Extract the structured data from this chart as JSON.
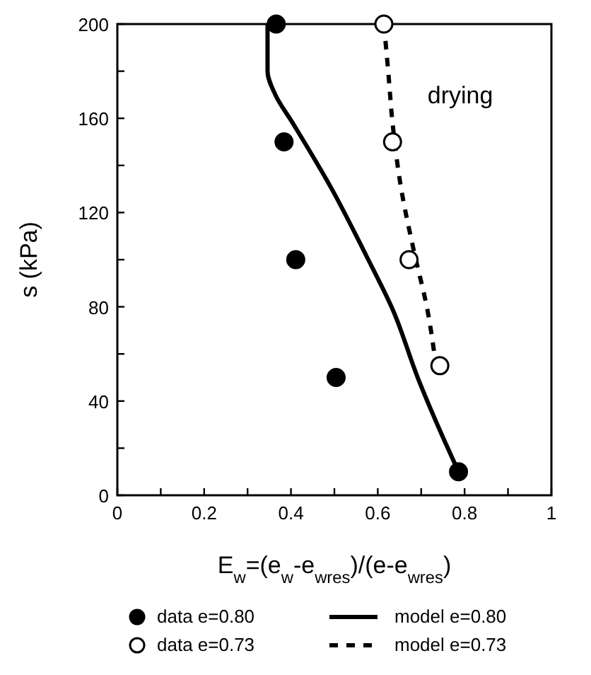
{
  "chart_data": {
    "type": "scatter",
    "xlabel": "E$_{w}$=(e$_{w}$-e$_{wres}$)/(e-e$_{wres}$)",
    "ylabel": "s (kPa)",
    "xlim": [
      0,
      1
    ],
    "ylim": [
      0,
      200
    ],
    "xticks": [
      0,
      {
        "value": 0.1,
        "label": null
      },
      0.2,
      {
        "value": 0.3,
        "label": null
      },
      0.4,
      {
        "value": 0.5,
        "label": null
      },
      0.6,
      {
        "value": 0.7,
        "label": null
      },
      0.8,
      {
        "value": 0.9,
        "label": null
      },
      1
    ],
    "yticks": [
      0,
      {
        "value": 20,
        "label": null
      },
      40,
      {
        "value": 60,
        "label": null
      },
      80,
      {
        "value": 100,
        "label": null
      },
      120,
      {
        "value": 140,
        "label": null
      },
      160,
      {
        "value": 180,
        "label": null
      },
      200
    ],
    "grid": false,
    "legend": "bottom",
    "annotations": [
      "drying"
    ],
    "series": [
      {
        "name": "data e=0.80",
        "marker": "circle",
        "color": "#000000",
        "x": [
          0.366,
          0.384,
          0.411,
          0.504,
          0.786
        ],
        "values": [
          200,
          150,
          100,
          50,
          10
        ]
      },
      {
        "name": "data e=0.73",
        "marker": "circle",
        "color": "#ffffff",
        "x": [
          0.614,
          0.634,
          0.672,
          0.743
        ],
        "values": [
          200,
          150,
          100,
          55
        ]
      },
      {
        "name": "model e=0.80",
        "type": "line",
        "line_style": "solid",
        "color": "#000000",
        "x": [
          0.346,
          0.346,
          0.364,
          0.404,
          0.494,
          0.574,
          0.634,
          0.694,
          0.754,
          0.786
        ],
        "values": [
          200,
          180,
          170,
          158,
          130,
          101.5,
          79,
          49,
          23,
          10
        ]
      },
      {
        "name": "model e=0.73",
        "type": "line",
        "line_style": "dashed",
        "color": "#000000",
        "x": [
          0.614,
          0.624,
          0.634,
          0.654,
          0.684,
          0.714,
          0.734
        ],
        "values": [
          200,
          180,
          158,
          130,
          103,
          79,
          55
        ]
      }
    ]
  }
}
